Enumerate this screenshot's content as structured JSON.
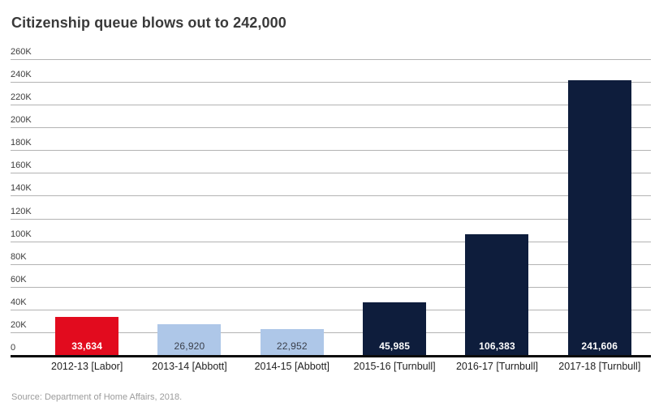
{
  "title": "Citizenship queue blows out to 242,000",
  "source": "Source: Department of Home Affairs, 2018.",
  "colors": {
    "background": "#ffffff",
    "gridline": "#b3b3b3",
    "axis_line": "#0a0a0a",
    "title_text": "#3a3a3a",
    "red": "#e20b1e",
    "light_blue": "#aec7e8",
    "navy": "#0e1d3c"
  },
  "chart_data": {
    "type": "bar",
    "title": "Citizenship queue blows out to 242,000",
    "xlabel": "",
    "ylabel": "",
    "categories": [
      "2012-13 [Labor]",
      "2013-14 [Abbott]",
      "2014-15 [Abbott]",
      "2015-16 [Turnbull]",
      "2016-17 [Turnbull]",
      "2017-18 [Turnbull]"
    ],
    "values": [
      33634,
      26920,
      22952,
      45985,
      106383,
      241606
    ],
    "value_labels": [
      "33,634",
      "26,920",
      "22,952",
      "45,985",
      "106,383",
      "241,606"
    ],
    "bar_colors": [
      "#e20b1e",
      "#aec7e8",
      "#aec7e8",
      "#0e1d3c",
      "#0e1d3c",
      "#0e1d3c"
    ],
    "label_colors": [
      "#ffffff",
      "#3a3f4a",
      "#3a3f4a",
      "#ffffff",
      "#ffffff",
      "#ffffff"
    ],
    "label_weights": [
      700,
      400,
      400,
      700,
      700,
      700
    ],
    "ylim": [
      0,
      260000
    ],
    "ytick_interval": 20000,
    "ytick_labels": [
      "260K",
      "240K",
      "220K",
      "200K",
      "180K",
      "160K",
      "140K",
      "120K",
      "100K",
      "80K",
      "60K",
      "40K",
      "20K",
      "0"
    ],
    "grid": "horizontal",
    "legend": "none"
  }
}
